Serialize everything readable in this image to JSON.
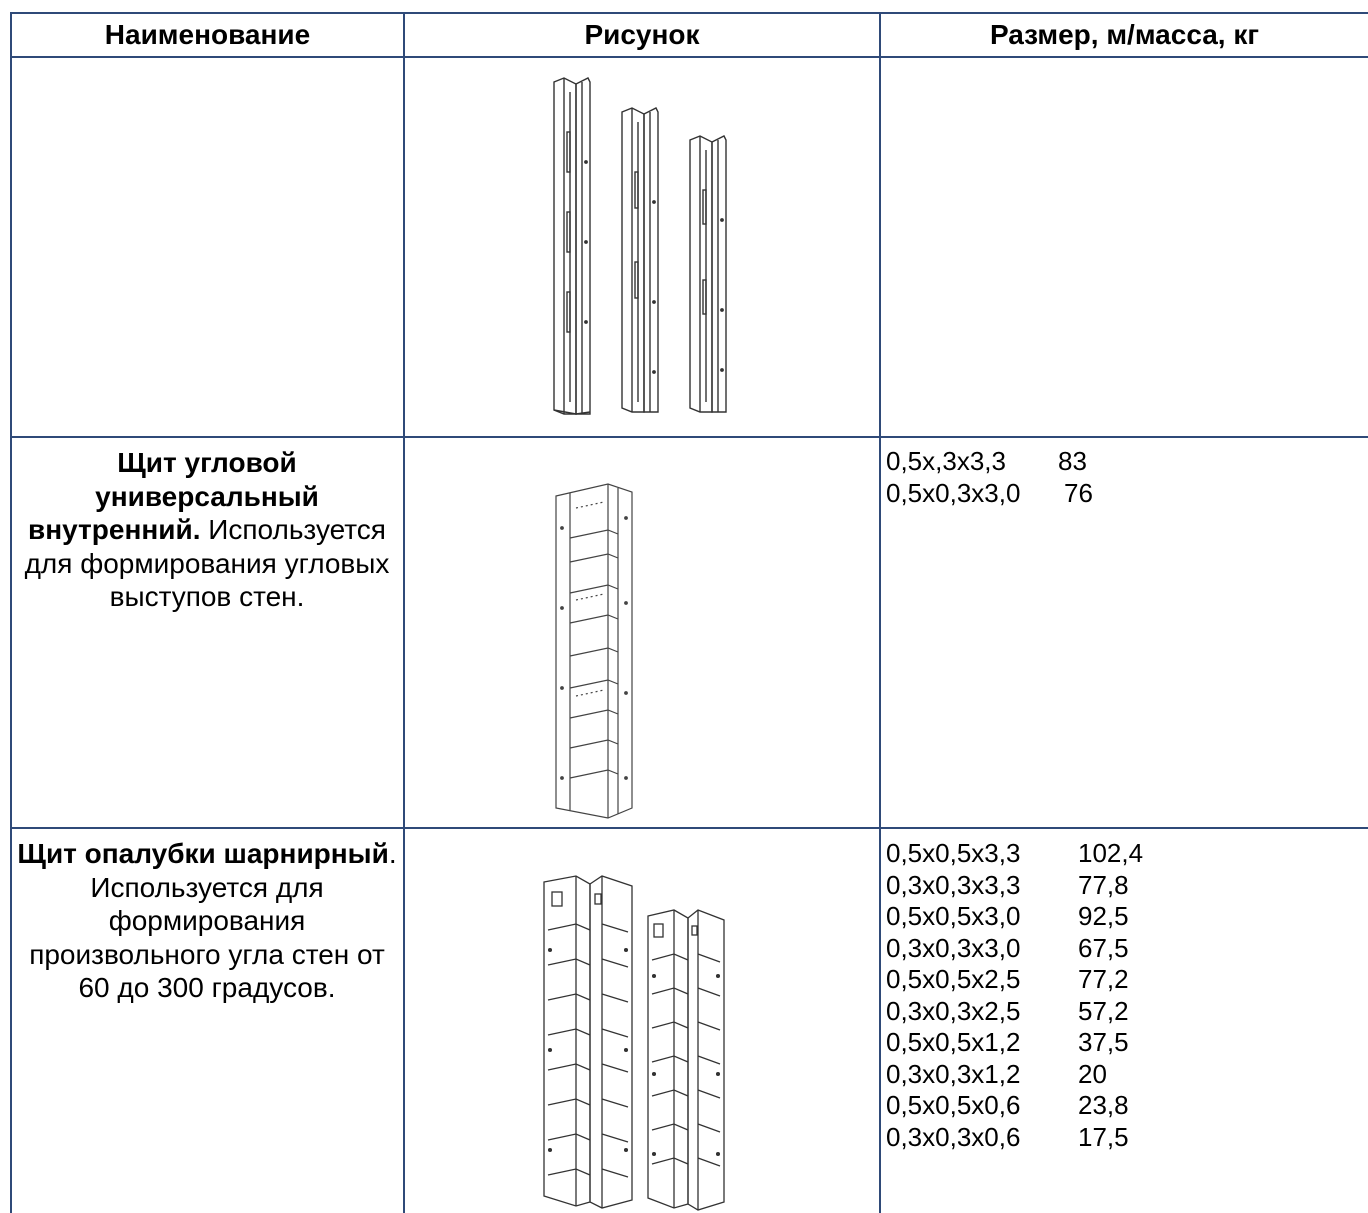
{
  "table": {
    "headers": [
      "Наименование",
      "Рисунок",
      "Размер, м/масса, кг"
    ],
    "rows": [
      {
        "name_bold": "",
        "name_rest": "",
        "picture": "three-narrow-corner-panels",
        "sizes": []
      },
      {
        "name_bold": "Щит угловой универсальный внутренний.",
        "name_rest": " Используется для формирования угловых выступов стен.",
        "picture": "inner-corner-panel",
        "sizes": [
          {
            "dims": "0,5х,3х3,3",
            "mass": "83"
          },
          {
            "dims": "0,5х0,3х3,0",
            "mass": "76"
          }
        ]
      },
      {
        "name_bold": "Щит опалубки шарнирный",
        "name_rest": ". Используется для формирования произвольного угла стен от 60 до 300 градусов.",
        "picture": "hinged-panels",
        "sizes": [
          {
            "dims": "0,5х0,5х3,3",
            "mass": "102,4"
          },
          {
            "dims": "0,3х0,3х3,3",
            "mass": "77,8"
          },
          {
            "dims": "0,5х0,5х3,0",
            "mass": "92,5"
          },
          {
            "dims": "0,3х0,3х3,0",
            "mass": "67,5"
          },
          {
            "dims": "0,5х0,5х2,5",
            "mass": "77,2"
          },
          {
            "dims": "0,3х0,3х2,5",
            "mass": "57,2"
          },
          {
            "dims": "0,5х0,5х1,2",
            "mass": "37,5"
          },
          {
            "dims": "0,3х0,3х1,2",
            "mass": "20"
          },
          {
            "dims": "0,5х0,5х0,6",
            "mass": "23,8"
          },
          {
            "dims": "0,3х0,3х0,6",
            "mass": "17,5"
          }
        ]
      }
    ]
  },
  "colors": {
    "border": "#2f4a78",
    "drawing": "#333333"
  }
}
